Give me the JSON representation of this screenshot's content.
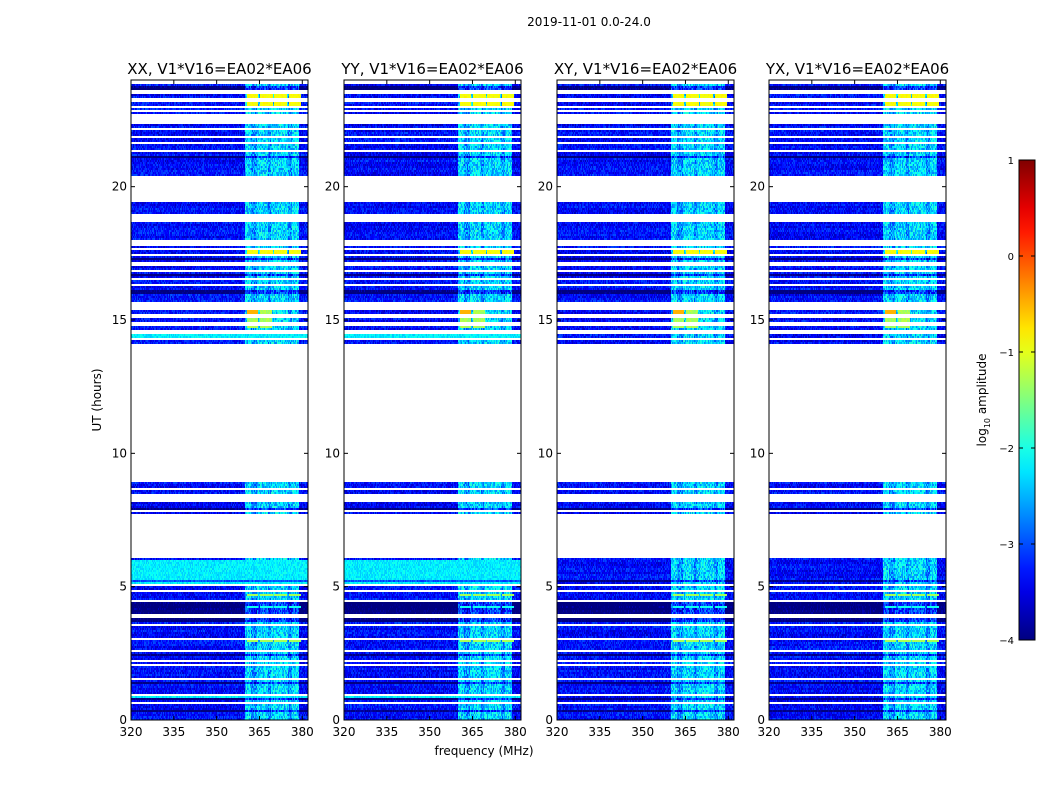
{
  "chart_data": {
    "type": "heatmap",
    "suptitle": "2019-11-01 0.0-24.0",
    "xlabel": "frequency (MHz)",
    "ylabel": "UT (hours)",
    "xlim": [
      320,
      382
    ],
    "ylim": [
      0,
      24
    ],
    "xticks": [
      "320",
      "335",
      "350",
      "365",
      "380"
    ],
    "xtick_values": [
      320,
      335,
      350,
      365,
      380
    ],
    "yticks": [
      "0",
      "5",
      "10",
      "15",
      "20"
    ],
    "ytick_values": [
      0,
      5,
      10,
      15,
      20
    ],
    "panels": [
      {
        "title": "XX, V1*V16=EA02*EA06",
        "pol": "XX"
      },
      {
        "title": "YY, V1*V16=EA02*EA06",
        "pol": "YY"
      },
      {
        "title": "XY, V1*V16=EA02*EA06",
        "pol": "XY"
      },
      {
        "title": "YX, V1*V16=EA02*EA06",
        "pol": "YX"
      }
    ],
    "data_gaps_hours": [
      [
        6.1,
        7.7
      ],
      [
        8.95,
        14.1
      ],
      [
        17.75,
        18.0
      ],
      [
        18.7,
        19.0
      ],
      [
        19.55,
        20.4
      ],
      [
        22.35,
        22.7
      ]
    ],
    "rfi_band_mhz": [
      360,
      379
    ],
    "colorbar": {
      "label_text": "amplitude",
      "label_prefix": "log",
      "label_subscript": "10",
      "vmin": -4,
      "vmax": 1,
      "ticks": [
        "1",
        "0",
        "−1",
        "−2",
        "−3",
        "−4"
      ],
      "tick_values": [
        1,
        0,
        -1,
        -2,
        -3,
        -4
      ],
      "colormap": "jet"
    }
  }
}
